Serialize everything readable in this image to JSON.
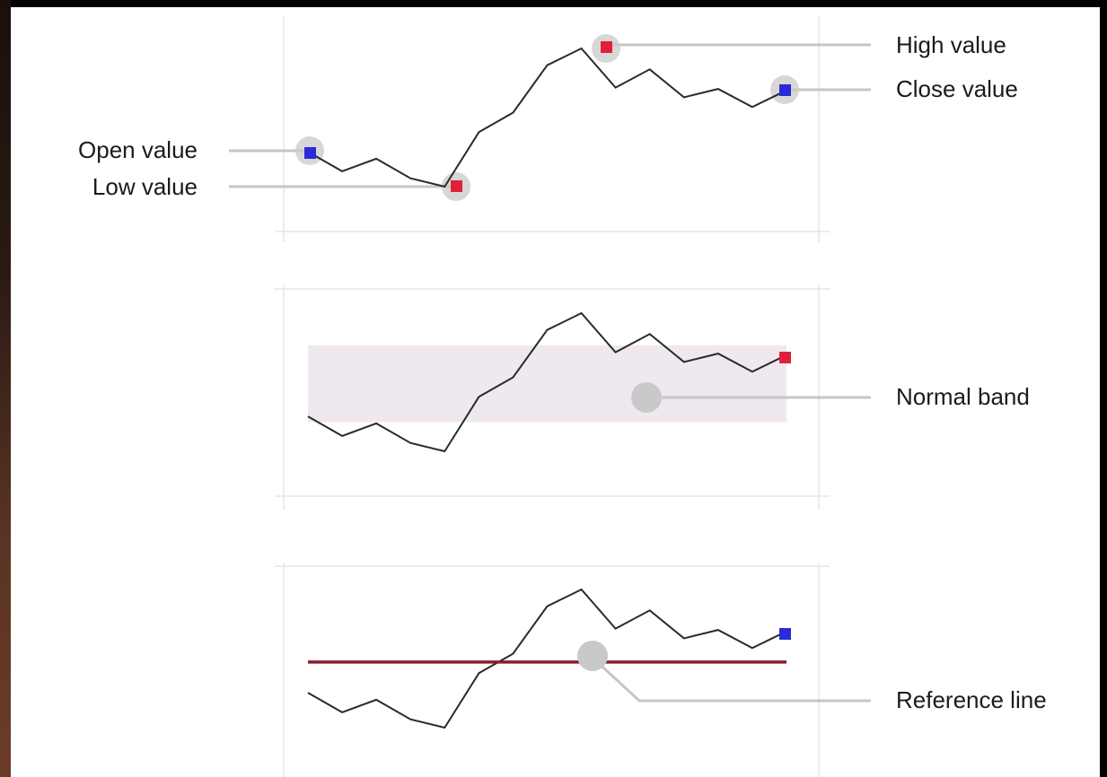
{
  "callouts": {
    "open_value": "Open value",
    "low_value": "Low value",
    "high_value": "High value",
    "close_value": "Close value",
    "normal_band": "Normal band",
    "reference_line": "Reference line"
  },
  "colors": {
    "series_line": "#2a2a2a",
    "high_low_marker": "#e0203a",
    "open_close_marker": "#2a2ad8",
    "band_fill": "#efe8ee",
    "reference_line": "#8c1c2c",
    "leader_line": "#c6c6c6",
    "highlight_circle": "#c9c9c9",
    "frame_line": "#e6e6e6"
  },
  "sparklines": [
    {
      "id": "high-low-open-close",
      "values": [
        6.4,
        5.0,
        5.9,
        4.5,
        3.9,
        7.8,
        9.2,
        12.6,
        13.8,
        11.0,
        12.3,
        10.3,
        10.9,
        9.6,
        10.8
      ]
    },
    {
      "id": "normal-band",
      "values": [
        6.4,
        5.0,
        5.9,
        4.5,
        3.9,
        7.8,
        9.2,
        12.6,
        13.8,
        11.0,
        12.3,
        10.3,
        10.9,
        9.6,
        10.8
      ],
      "band": [
        6.0,
        11.5
      ]
    },
    {
      "id": "reference-line",
      "values": [
        6.4,
        5.0,
        5.9,
        4.5,
        3.9,
        7.8,
        9.2,
        12.6,
        13.8,
        11.0,
        12.3,
        10.3,
        10.9,
        9.6,
        10.8
      ],
      "reference": 8.6
    }
  ]
}
